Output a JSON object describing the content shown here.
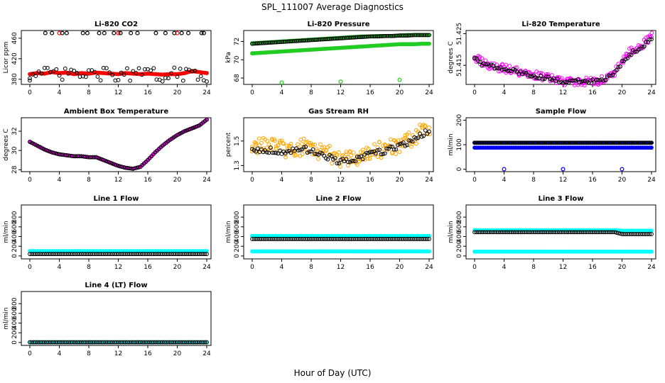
{
  "title": "SPL_111007  Average Diagnostics",
  "xlabel": "Hour of Day (UTC)",
  "colors": {
    "axis": "#000000",
    "black": "#000000",
    "red": "#ff0000",
    "green": "#22cc22",
    "magenta": "#ff00ff",
    "orange": "#ffa500",
    "blue": "#0000ff",
    "navy": "#000088",
    "cyan": "#00ffff"
  },
  "chart_data": [
    {
      "type": "scatter",
      "title": "Li-820 CO2",
      "ylabel": "Licor ppm",
      "xlim": [
        0,
        24
      ],
      "ylim": [
        370,
        475
      ],
      "xticks": [
        0,
        4,
        8,
        12,
        16,
        20,
        24
      ],
      "yticks": [
        380,
        420,
        460
      ],
      "series": [
        {
          "color": "red",
          "filled": true,
          "pattern": "flat",
          "y": [
            390,
            392,
            391,
            394,
            392,
            393,
            390,
            392,
            391,
            393,
            392,
            391,
            390,
            392,
            391,
            390,
            391,
            390,
            389,
            390,
            390,
            392,
            396,
            394,
            392
          ],
          "outliers": [
            [
              4,
              470
            ],
            [
              12,
              470
            ],
            [
              20,
              470
            ]
          ]
        },
        {
          "color": "black",
          "filled": false,
          "pattern": "scatter",
          "base": 389,
          "jitter": 14,
          "outliers": [
            [
              2.1,
              470
            ],
            [
              3,
              470
            ],
            [
              4.4,
              470
            ],
            [
              5,
              470
            ],
            [
              7.2,
              470
            ],
            [
              7.8,
              470
            ],
            [
              9.4,
              470
            ],
            [
              10.1,
              470
            ],
            [
              11.4,
              470
            ],
            [
              12.3,
              470
            ],
            [
              13.7,
              470
            ],
            [
              14.6,
              470
            ],
            [
              17.1,
              470
            ],
            [
              18.4,
              470
            ],
            [
              19.6,
              470
            ],
            [
              20.6,
              470
            ],
            [
              21.5,
              470
            ],
            [
              23.3,
              470
            ],
            [
              23.6,
              470
            ]
          ]
        }
      ]
    },
    {
      "type": "scatter",
      "title": "Li-820 Pressure",
      "ylabel": "kPa",
      "xlim": [
        0,
        24
      ],
      "ylim": [
        67.3,
        73.2
      ],
      "xticks": [
        0,
        4,
        8,
        12,
        16,
        20,
        24
      ],
      "yticks": [
        68,
        70,
        72
      ],
      "series": [
        {
          "color": "green",
          "filled": true,
          "pattern": "flat",
          "y": [
            71.8,
            71.85,
            71.9,
            71.95,
            72.0,
            72.05,
            72.1,
            72.15,
            72.2,
            72.25,
            72.3,
            72.35,
            72.4,
            72.45,
            72.5,
            72.55,
            72.55,
            72.6,
            72.6,
            72.6,
            72.65,
            72.7,
            72.7,
            72.7,
            72.7
          ]
        },
        {
          "color": "green",
          "filled": true,
          "pattern": "flat",
          "y": [
            70.7,
            70.75,
            70.8,
            70.85,
            70.9,
            70.95,
            71.0,
            71.05,
            71.1,
            71.15,
            71.2,
            71.25,
            71.3,
            71.35,
            71.4,
            71.45,
            71.5,
            71.55,
            71.6,
            71.65,
            71.7,
            71.7,
            71.7,
            71.75,
            71.75
          ],
          "outliers": [
            [
              4,
              67.5
            ],
            [
              12,
              67.6
            ],
            [
              20,
              67.8
            ]
          ]
        },
        {
          "color": "black",
          "filled": false,
          "pattern": "flat",
          "y": [
            71.75,
            71.8,
            71.85,
            71.9,
            71.95,
            72.0,
            72.05,
            72.1,
            72.15,
            72.2,
            72.25,
            72.3,
            72.35,
            72.4,
            72.45,
            72.5,
            72.55,
            72.55,
            72.6,
            72.6,
            72.65,
            72.65,
            72.7,
            72.7,
            72.7
          ]
        }
      ]
    },
    {
      "type": "scatter",
      "title": "Li-820 Temperature",
      "ylabel": "degrees C",
      "xlim": [
        0,
        24
      ],
      "ylim": [
        51.409,
        51.426
      ],
      "xticks": [
        0,
        4,
        8,
        12,
        16,
        20,
        24
      ],
      "yticks": [
        51.415,
        51.425
      ],
      "ytick_labels": [
        "51.415",
        "51.425"
      ],
      "series": [
        {
          "color": "magenta",
          "filled": false,
          "pattern": "scatter",
          "jitter": 0.0013,
          "y": [
            51.4175,
            51.416,
            51.415,
            51.4145,
            51.414,
            51.4135,
            51.413,
            51.4125,
            51.412,
            51.4115,
            51.411,
            51.4105,
            51.41,
            51.41,
            51.41,
            51.41,
            51.41,
            51.41,
            51.411,
            51.413,
            51.416,
            51.419,
            51.4205,
            51.422,
            51.4245
          ]
        },
        {
          "color": "black",
          "filled": false,
          "pattern": "scatter",
          "jitter": 0.0006,
          "y": [
            51.4175,
            51.4155,
            51.415,
            51.414,
            51.4138,
            51.4133,
            51.4128,
            51.4123,
            51.4118,
            51.4113,
            51.4108,
            51.4103,
            51.41,
            51.41,
            51.41,
            51.41,
            51.41,
            51.41,
            51.4112,
            51.413,
            51.4158,
            51.4185,
            51.42,
            51.4215,
            51.4235
          ]
        }
      ]
    },
    {
      "type": "scatter",
      "title": "Ambient Box Temperature",
      "ylabel": "degrees C",
      "xlim": [
        0,
        24
      ],
      "ylim": [
        27.8,
        33.4
      ],
      "xticks": [
        0,
        4,
        8,
        12,
        16,
        20,
        24
      ],
      "yticks": [
        28,
        30,
        32
      ],
      "series": [
        {
          "color": "magenta",
          "filled": true,
          "pattern": "flat",
          "y": [
            30.9,
            30.5,
            30.1,
            29.8,
            29.6,
            29.5,
            29.4,
            29.4,
            29.3,
            29.3,
            29.0,
            28.7,
            28.4,
            28.2,
            28.1,
            28.3,
            29.0,
            29.8,
            30.5,
            31.1,
            31.6,
            32.0,
            32.3,
            32.6,
            33.2
          ]
        },
        {
          "color": "black",
          "filled": false,
          "pattern": "flat",
          "y": [
            30.9,
            30.5,
            30.1,
            29.8,
            29.6,
            29.5,
            29.4,
            29.4,
            29.3,
            29.3,
            29.0,
            28.7,
            28.4,
            28.2,
            28.1,
            28.3,
            29.0,
            29.8,
            30.5,
            31.1,
            31.6,
            32.0,
            32.3,
            32.6,
            33.2
          ]
        }
      ]
    },
    {
      "type": "scatter",
      "title": "Gas Stream RH",
      "ylabel": "percent",
      "xlim": [
        0,
        24
      ],
      "ylim": [
        1.25,
        1.69
      ],
      "xticks": [
        0,
        4,
        8,
        12,
        16,
        20,
        24
      ],
      "yticks": [
        1.3,
        1.5
      ],
      "series": [
        {
          "color": "orange",
          "filled": false,
          "pattern": "scatter",
          "jitter": 0.07,
          "y": [
            1.47,
            1.47,
            1.46,
            1.45,
            1.44,
            1.43,
            1.44,
            1.45,
            1.43,
            1.42,
            1.4,
            1.38,
            1.36,
            1.35,
            1.36,
            1.38,
            1.4,
            1.42,
            1.43,
            1.45,
            1.47,
            1.5,
            1.54,
            1.57,
            1.6
          ]
        },
        {
          "color": "black",
          "filled": false,
          "pattern": "scatter",
          "jitter": 0.025,
          "y": [
            1.44,
            1.42,
            1.43,
            1.42,
            1.41,
            1.42,
            1.42,
            1.43,
            1.42,
            1.41,
            1.38,
            1.35,
            1.33,
            1.33,
            1.35,
            1.37,
            1.39,
            1.41,
            1.42,
            1.44,
            1.46,
            1.49,
            1.52,
            1.55,
            1.58
          ]
        }
      ]
    },
    {
      "type": "scatter",
      "title": "Sample Flow",
      "ylabel": "ml/min",
      "xlim": [
        0,
        24
      ],
      "ylim": [
        -10,
        210
      ],
      "xticks": [
        0,
        4,
        8,
        12,
        16,
        20,
        24
      ],
      "yticks": [
        0,
        100,
        200
      ],
      "series": [
        {
          "color": "blue",
          "filled": true,
          "pattern": "flat",
          "y": [
            88,
            88,
            88,
            88,
            88,
            88,
            88,
            88,
            88,
            88,
            88,
            88,
            88,
            88,
            88,
            88,
            88,
            88,
            88,
            88,
            88,
            88,
            88,
            88,
            88
          ],
          "outliers": [
            [
              4,
              0
            ],
            [
              12,
              0
            ],
            [
              20,
              0
            ]
          ]
        },
        {
          "color": "navy",
          "filled": true,
          "pattern": "flat",
          "y": [
            108,
            108,
            108,
            108,
            108,
            108,
            108,
            108,
            108,
            108,
            108,
            108,
            108,
            108,
            108,
            108,
            108,
            108,
            108,
            108,
            108,
            108,
            108,
            108,
            108
          ]
        },
        {
          "color": "black",
          "filled": false,
          "pattern": "flat",
          "y": [
            108,
            108,
            108,
            108,
            108,
            108,
            108,
            108,
            108,
            108,
            108,
            108,
            108,
            108,
            108,
            108,
            108,
            108,
            108,
            108,
            108,
            108,
            108,
            108,
            108
          ]
        }
      ]
    },
    {
      "type": "scatter",
      "title": "Line 1 Flow",
      "ylabel": "ml/min",
      "xlim": [
        0,
        24
      ],
      "ylim": [
        -60,
        1050
      ],
      "xticks": [
        0,
        4,
        8,
        12,
        16,
        20,
        24
      ],
      "yticks": [
        0,
        200,
        400,
        600,
        800
      ],
      "series": [
        {
          "color": "cyan",
          "filled": true,
          "pattern": "flat",
          "y": [
            100,
            100,
            100,
            100,
            100,
            100,
            100,
            100,
            100,
            100,
            100,
            100,
            100,
            100,
            100,
            100,
            100,
            100,
            100,
            100,
            100,
            100,
            100,
            100,
            100
          ]
        },
        {
          "color": "black",
          "filled": false,
          "pattern": "flat",
          "y": [
            40,
            40,
            40,
            40,
            40,
            40,
            40,
            40,
            40,
            40,
            40,
            40,
            40,
            40,
            40,
            40,
            40,
            40,
            40,
            40,
            40,
            40,
            40,
            40,
            40
          ]
        }
      ]
    },
    {
      "type": "scatter",
      "title": "Line 2 Flow",
      "ylabel": "ml/min",
      "xlim": [
        0,
        24
      ],
      "ylim": [
        -60,
        1050
      ],
      "xticks": [
        0,
        4,
        8,
        12,
        16,
        20,
        24
      ],
      "yticks": [
        0,
        200,
        400,
        600,
        800
      ],
      "series": [
        {
          "color": "cyan",
          "filled": true,
          "pattern": "flat",
          "y": [
            410,
            410,
            410,
            410,
            410,
            410,
            410,
            410,
            410,
            410,
            410,
            410,
            410,
            410,
            410,
            410,
            410,
            410,
            410,
            410,
            410,
            410,
            410,
            410,
            410
          ]
        },
        {
          "color": "cyan",
          "filled": true,
          "pattern": "flat",
          "y": [
            95,
            95,
            95,
            95,
            95,
            95,
            95,
            95,
            95,
            95,
            95,
            95,
            95,
            95,
            95,
            95,
            95,
            95,
            95,
            95,
            95,
            95,
            95,
            95,
            95
          ]
        },
        {
          "color": "black",
          "filled": false,
          "pattern": "flat",
          "y": [
            350,
            350,
            350,
            350,
            350,
            350,
            350,
            350,
            350,
            350,
            350,
            350,
            350,
            350,
            350,
            350,
            350,
            350,
            350,
            350,
            350,
            350,
            350,
            350,
            350
          ]
        }
      ]
    },
    {
      "type": "scatter",
      "title": "Line 3 Flow",
      "ylabel": "ml/min",
      "xlim": [
        0,
        24
      ],
      "ylim": [
        -60,
        1050
      ],
      "xticks": [
        0,
        4,
        8,
        12,
        16,
        20,
        24
      ],
      "yticks": [
        0,
        200,
        400,
        600,
        800
      ],
      "series": [
        {
          "color": "cyan",
          "filled": true,
          "pattern": "flat",
          "y": [
            530,
            530,
            530,
            530,
            530,
            530,
            530,
            530,
            530,
            530,
            530,
            530,
            530,
            530,
            530,
            530,
            530,
            530,
            530,
            530,
            520,
            520,
            520,
            520,
            520
          ]
        },
        {
          "color": "cyan",
          "filled": true,
          "pattern": "flat",
          "y": [
            90,
            90,
            90,
            90,
            90,
            90,
            90,
            90,
            90,
            90,
            90,
            90,
            90,
            90,
            90,
            90,
            90,
            90,
            90,
            90,
            90,
            90,
            90,
            90,
            90
          ]
        },
        {
          "color": "black",
          "filled": false,
          "pattern": "flat",
          "y": [
            490,
            490,
            490,
            490,
            490,
            490,
            490,
            490,
            490,
            490,
            490,
            490,
            490,
            490,
            490,
            490,
            490,
            490,
            490,
            490,
            450,
            450,
            450,
            450,
            450
          ]
        }
      ]
    },
    {
      "type": "scatter",
      "title": "Line 4 (LT) Flow",
      "ylabel": "ml/min",
      "xlim": [
        0,
        24
      ],
      "ylim": [
        -60,
        1050
      ],
      "xticks": [
        0,
        4,
        8,
        12,
        16,
        20,
        24
      ],
      "yticks": [
        0,
        200,
        400,
        600,
        800
      ],
      "series": [
        {
          "color": "cyan",
          "filled": true,
          "pattern": "flat",
          "y": [
            5,
            5,
            5,
            5,
            5,
            5,
            5,
            5,
            5,
            5,
            5,
            5,
            5,
            5,
            5,
            5,
            5,
            5,
            5,
            5,
            5,
            5,
            5,
            5,
            5
          ]
        },
        {
          "color": "black",
          "filled": false,
          "pattern": "flat",
          "y": [
            5,
            5,
            5,
            5,
            5,
            5,
            5,
            5,
            5,
            5,
            5,
            5,
            5,
            5,
            5,
            5,
            5,
            5,
            5,
            5,
            5,
            5,
            5,
            5,
            5
          ]
        }
      ]
    }
  ]
}
